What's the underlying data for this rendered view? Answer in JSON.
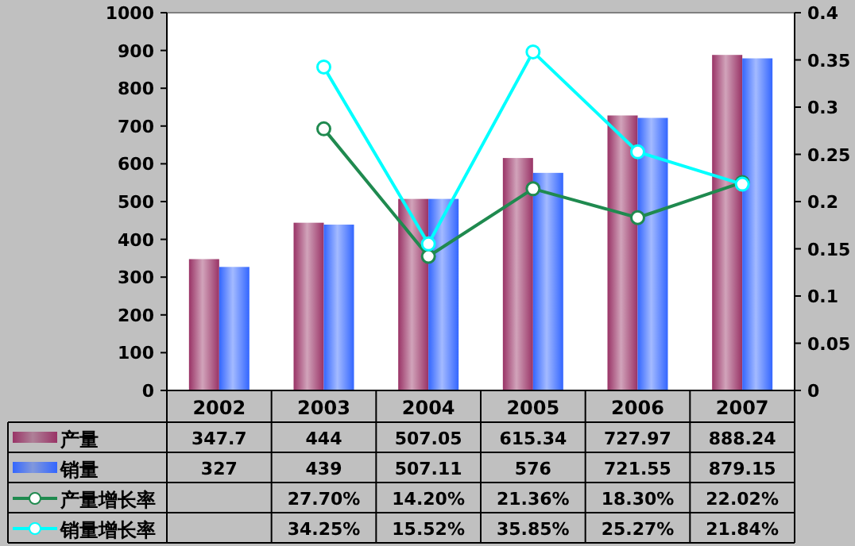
{
  "chart_data": {
    "type": "bar",
    "categories": [
      "2002",
      "2003",
      "2004",
      "2005",
      "2006",
      "2007"
    ],
    "ylim": [
      0,
      1000
    ],
    "yticks": [
      0,
      100,
      200,
      300,
      400,
      500,
      600,
      700,
      800,
      900,
      1000
    ],
    "y2lim": [
      0,
      0.4
    ],
    "y2ticks": [
      0,
      0.05,
      0.1,
      0.15,
      0.2,
      0.25,
      0.3,
      0.35,
      0.4
    ],
    "legend": "bottom",
    "grid": false,
    "series": [
      {
        "name": "产量",
        "color": "#993366",
        "values": [
          347.7,
          444,
          507.05,
          615.34,
          727.97,
          888.24
        ],
        "value_labels": [
          "347.7",
          "444",
          "507.05",
          "615.34",
          "727.97",
          "888.24"
        ]
      },
      {
        "name": "销量",
        "color": "#3366ff",
        "values": [
          327,
          439,
          507.11,
          576,
          721.55,
          879.15
        ],
        "value_labels": [
          "327",
          "439",
          "507.11",
          "576",
          "721.55",
          "879.15"
        ]
      },
      {
        "name": "产量增长率",
        "type": "line",
        "axis": "y2",
        "color": "#1f8a4f",
        "marker": "circle",
        "values": [
          null,
          0.277,
          0.142,
          0.2136,
          0.183,
          0.2202
        ],
        "value_labels": [
          null,
          "27.70%",
          "14.20%",
          "21.36%",
          "18.30%",
          "22.02%"
        ]
      },
      {
        "name": "销量增长率",
        "type": "line",
        "axis": "y2",
        "color": "#00ffff",
        "marker": "circle",
        "values": [
          null,
          0.3425,
          0.1552,
          0.3585,
          0.2527,
          0.2184
        ],
        "value_labels": [
          null,
          "34.25%",
          "15.52%",
          "35.85%",
          "25.27%",
          "21.84%"
        ]
      }
    ]
  }
}
